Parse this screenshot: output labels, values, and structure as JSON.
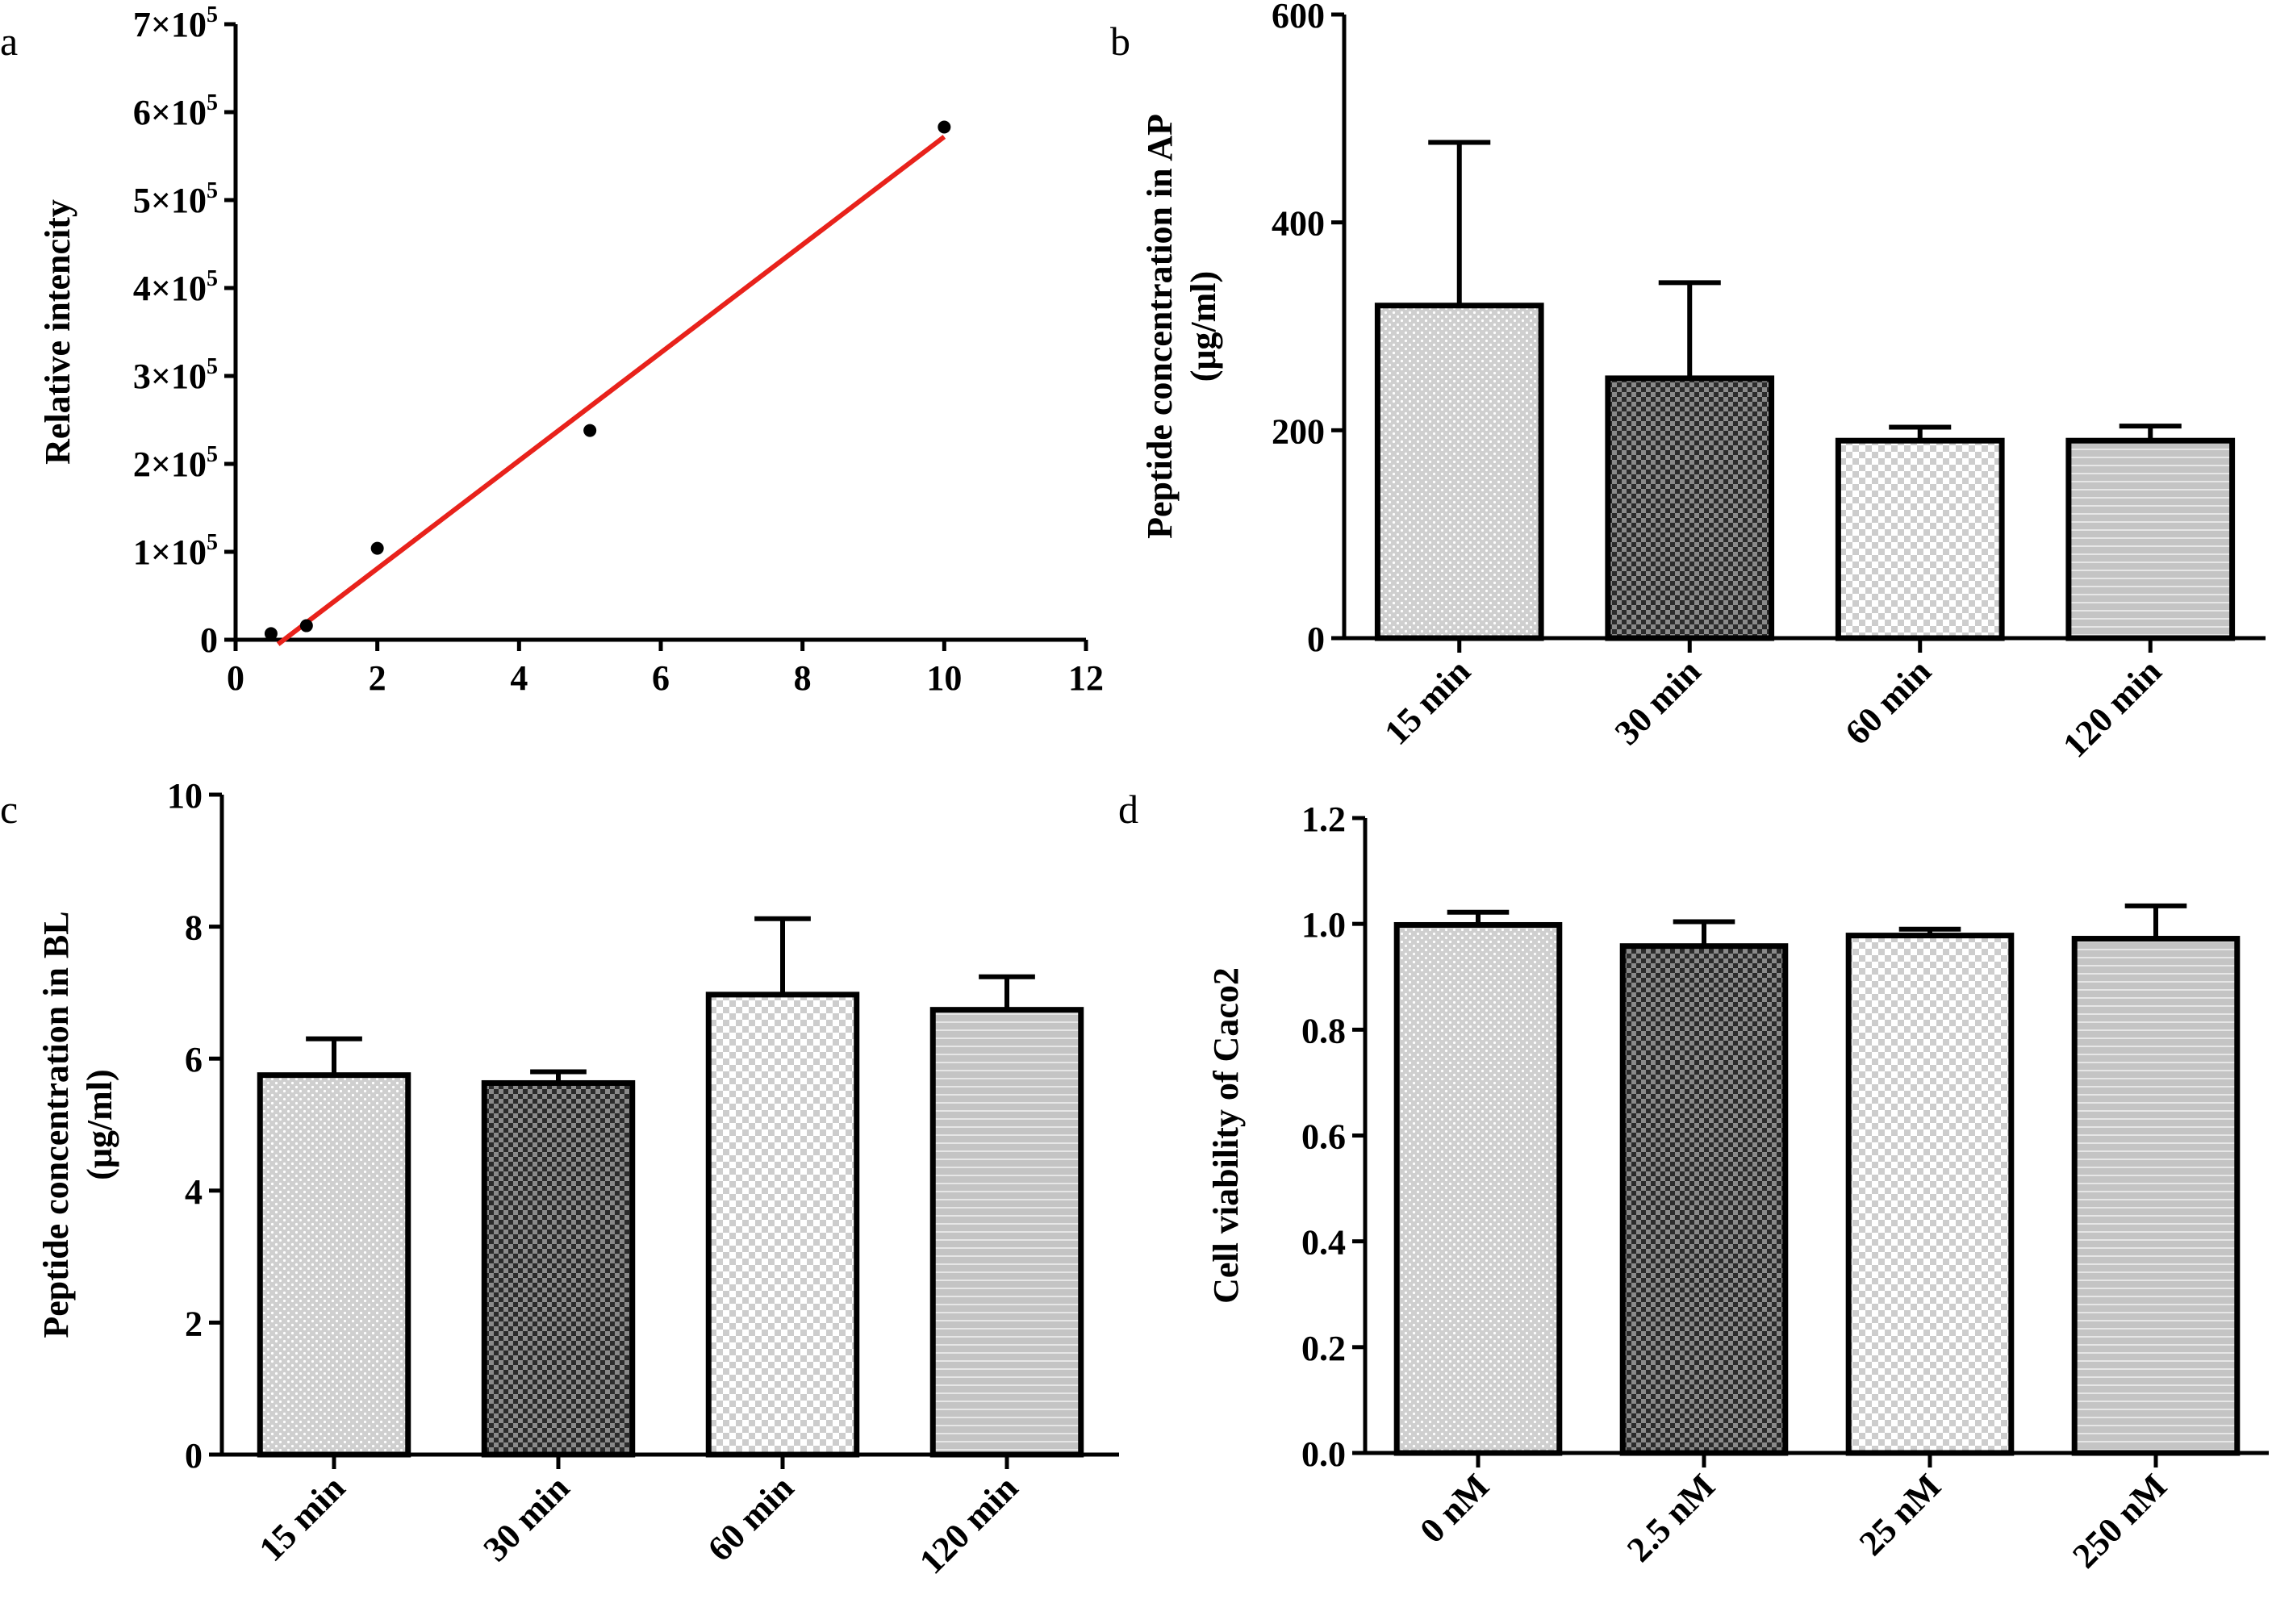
{
  "chart_data": [
    {
      "panel": "a",
      "type": "scatter",
      "ylabel": "Relative intencity",
      "xlabel": "",
      "xlim": [
        0,
        12
      ],
      "ylim": [
        0,
        700000
      ],
      "x_ticks": [
        "0",
        "2",
        "4",
        "6",
        "8",
        "10",
        "12"
      ],
      "y_ticks": [
        {
          "mantissa": "",
          "base": "0",
          "exp": ""
        },
        {
          "mantissa": "1",
          "base": "×10",
          "exp": "5"
        },
        {
          "mantissa": "2",
          "base": "×10",
          "exp": "5"
        },
        {
          "mantissa": "3",
          "base": "×10",
          "exp": "5"
        },
        {
          "mantissa": "4",
          "base": "×10",
          "exp": "5"
        },
        {
          "mantissa": "5",
          "base": "×10",
          "exp": "5"
        },
        {
          "mantissa": "6",
          "base": "×10",
          "exp": "5"
        },
        {
          "mantissa": "7",
          "base": "×10",
          "exp": "5"
        }
      ],
      "points": [
        {
          "x": 0.5,
          "y": 7000
        },
        {
          "x": 1,
          "y": 16000
        },
        {
          "x": 2,
          "y": 104000
        },
        {
          "x": 5,
          "y": 238000
        },
        {
          "x": 10,
          "y": 583000
        }
      ],
      "fit_line": {
        "x": [
          0.6,
          10
        ],
        "y": [
          -5000,
          572000
        ],
        "color": "#e8221b"
      },
      "grid": false
    },
    {
      "panel": "b",
      "type": "bar",
      "ylabel": "Peptide concentration in AP",
      "ylabel2": "(μg/ml)",
      "categories": [
        "15 min",
        "30 min",
        "60 min",
        "120 min"
      ],
      "values": [
        320,
        250,
        190,
        190
      ],
      "errors": [
        157,
        92,
        13,
        14
      ],
      "ylim": [
        0,
        600
      ],
      "y_ticks": [
        "0",
        "200",
        "400",
        "600"
      ],
      "grid": false
    },
    {
      "panel": "c",
      "type": "bar",
      "ylabel": "Peptide concentration in BL",
      "ylabel2": "(μg/ml)",
      "categories": [
        "15 min",
        "30 min",
        "60 min",
        "120 min"
      ],
      "values": [
        5.75,
        5.63,
        6.97,
        6.74
      ],
      "errors": [
        0.55,
        0.17,
        1.15,
        0.5
      ],
      "ylim": [
        0,
        10
      ],
      "y_ticks": [
        "0",
        "2",
        "4",
        "6",
        "8",
        "10"
      ],
      "grid": false
    },
    {
      "panel": "d",
      "type": "bar",
      "ylabel": "Cell viability of Caco2",
      "categories": [
        "0 nM",
        "2.5 nM",
        "25 nM",
        "250 nM"
      ],
      "values": [
        0.998,
        0.958,
        0.978,
        0.972
      ],
      "errors": [
        0.024,
        0.046,
        0.012,
        0.062
      ],
      "ylim": [
        0,
        1.2
      ],
      "y_ticks": [
        "0.0",
        "0.2",
        "0.4",
        "0.6",
        "0.8",
        "1.0",
        "1.2"
      ],
      "grid": false
    }
  ]
}
